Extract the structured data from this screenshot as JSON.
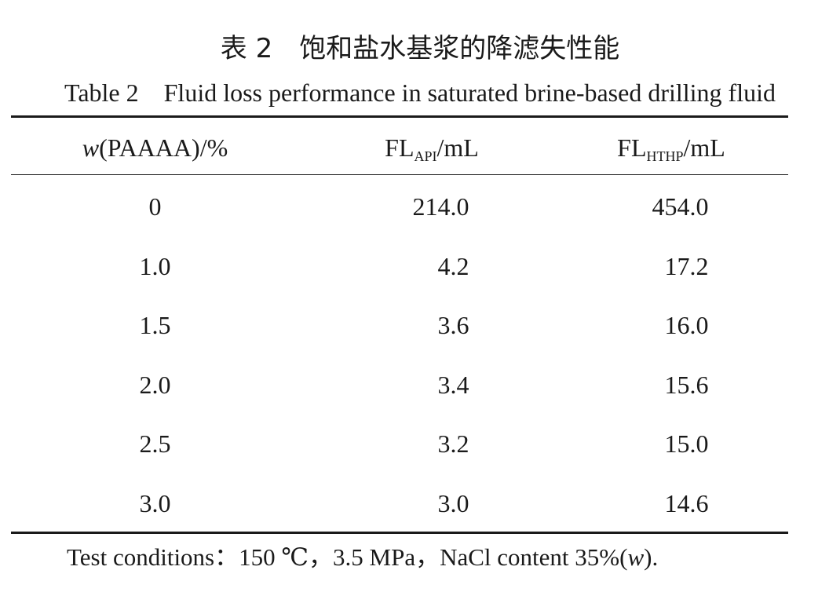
{
  "caption": {
    "cn": "表 2　饱和盐水基浆的降滤失性能",
    "en": "Table 2    Fluid loss performance in saturated brine-based drilling fluid"
  },
  "table": {
    "headers": {
      "col1_italic": "w",
      "col1_rest": "(PAAAA)/%",
      "col2_main": "FL",
      "col2_sub": "API",
      "col2_unit": "/mL",
      "col3_main": "FL",
      "col3_sub": "HTHP",
      "col3_unit": "/mL"
    },
    "rows": [
      {
        "w": "0",
        "fl_api": "214.0",
        "fl_hthp": "454.0"
      },
      {
        "w": "1.0",
        "fl_api": "4.2",
        "fl_hthp": "17.2"
      },
      {
        "w": "1.5",
        "fl_api": "3.6",
        "fl_hthp": "16.0"
      },
      {
        "w": "2.0",
        "fl_api": "3.4",
        "fl_hthp": "15.6"
      },
      {
        "w": "2.5",
        "fl_api": "3.2",
        "fl_hthp": "15.0"
      },
      {
        "w": "3.0",
        "fl_api": "3.0",
        "fl_hthp": "14.6"
      }
    ]
  },
  "note": {
    "text": "Test conditions：150 ℃，3.5 MPa，NaCl content 35%(",
    "italic": "w",
    "end": ")."
  }
}
